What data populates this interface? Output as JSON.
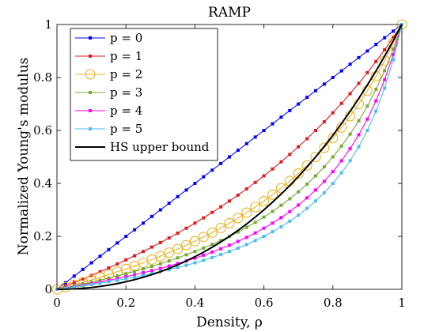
{
  "chart_data": {
    "type": "line",
    "title": "RAMP",
    "xlabel": "Density, ρ",
    "ylabel": "Normalized Young's modulus",
    "xlim": [
      0,
      1
    ],
    "ylim": [
      0,
      1
    ],
    "xticks": [
      "0",
      "0.2",
      "0.4",
      "0.6",
      "0.8",
      "1"
    ],
    "yticks": [
      "0",
      "0.2",
      "0.4",
      "0.6",
      "0.8",
      "1"
    ],
    "grid": false,
    "legend_position": "top-left",
    "x": [
      0,
      0.025,
      0.05,
      0.075,
      0.1,
      0.125,
      0.15,
      0.175,
      0.2,
      0.225,
      0.25,
      0.275,
      0.3,
      0.325,
      0.35,
      0.375,
      0.4,
      0.425,
      0.45,
      0.475,
      0.5,
      0.525,
      0.55,
      0.575,
      0.6,
      0.625,
      0.65,
      0.675,
      0.7,
      0.725,
      0.75,
      0.775,
      0.8,
      0.825,
      0.85,
      0.875,
      0.9,
      0.925,
      0.95,
      0.975,
      1
    ],
    "series": [
      {
        "name": "p = 0",
        "color": "#0000ff",
        "marker": "square",
        "p": 0
      },
      {
        "name": "p = 1",
        "color": "#e31a1c",
        "marker": "square",
        "p": 1
      },
      {
        "name": "p = 2",
        "color": "#edb120",
        "marker": "circle-open",
        "p": 2
      },
      {
        "name": "p = 3",
        "color": "#77ac30",
        "marker": "square",
        "p": 3
      },
      {
        "name": "p = 4",
        "color": "#ff00ff",
        "marker": "square",
        "p": 4
      },
      {
        "name": "p = 5",
        "color": "#4dbeee",
        "marker": "square",
        "p": 5
      },
      {
        "name": "HS upper bound",
        "color": "#000000",
        "marker": "none",
        "hs": true
      }
    ]
  }
}
